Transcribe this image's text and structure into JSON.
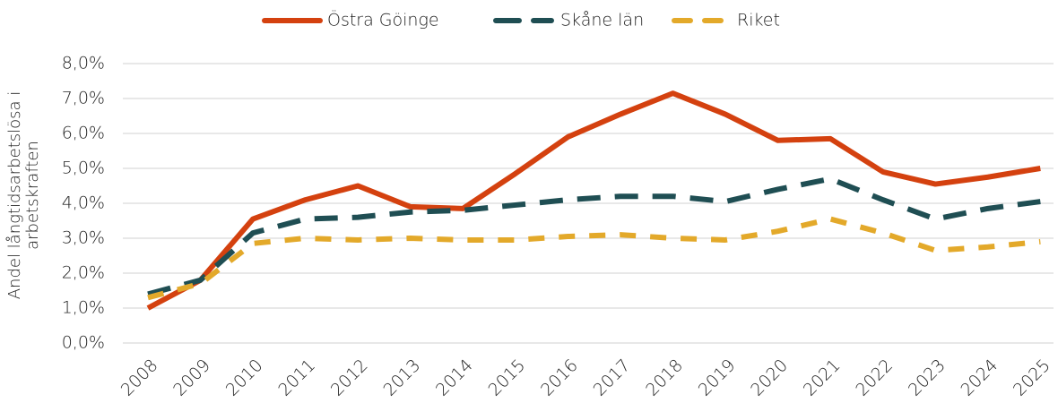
{
  "chart_data": {
    "type": "line",
    "y_label": "Andel långtidsarbetslösa i arbetskraften",
    "categories": [
      "2008",
      "2009",
      "2010",
      "2011",
      "2012",
      "2013",
      "2014",
      "2015",
      "2016",
      "2017",
      "2018",
      "2019",
      "2020",
      "2021",
      "2022",
      "2023",
      "2024",
      "2025"
    ],
    "series": [
      {
        "name": "Östra Göinge",
        "color": "#d4410f",
        "values": [
          1.0,
          1.8,
          3.55,
          4.1,
          4.5,
          3.9,
          3.85,
          4.85,
          5.9,
          6.55,
          7.15,
          6.55,
          5.8,
          5.85,
          4.9,
          4.55,
          4.75,
          5.0
        ]
      },
      {
        "name": "Skåne län",
        "color": "#1f4e53",
        "values": [
          1.4,
          1.8,
          3.15,
          3.55,
          3.6,
          3.75,
          3.8,
          3.95,
          4.1,
          4.2,
          4.2,
          4.05,
          4.4,
          4.7,
          4.1,
          3.55,
          3.85,
          4.05
        ]
      },
      {
        "name": "Riket",
        "color": "#e3a92a",
        "values": [
          1.3,
          1.7,
          2.85,
          3.0,
          2.95,
          3.0,
          2.95,
          2.95,
          3.05,
          3.1,
          3.0,
          2.95,
          3.2,
          3.55,
          3.15,
          2.65,
          2.75,
          2.9
        ]
      }
    ],
    "ylim": [
      0,
      8
    ],
    "yticks": [
      {
        "value": 0,
        "label": "0,0%"
      },
      {
        "value": 1,
        "label": "1,0%"
      },
      {
        "value": 2,
        "label": "2,0%"
      },
      {
        "value": 3,
        "label": "3,0%"
      },
      {
        "value": 4,
        "label": "4,0%"
      },
      {
        "value": 5,
        "label": "5,0%"
      },
      {
        "value": 6,
        "label": "6,0%"
      },
      {
        "value": 7,
        "label": "7,0%"
      },
      {
        "value": 8,
        "label": "8,0%"
      }
    ],
    "grid": true,
    "legend": "top"
  }
}
